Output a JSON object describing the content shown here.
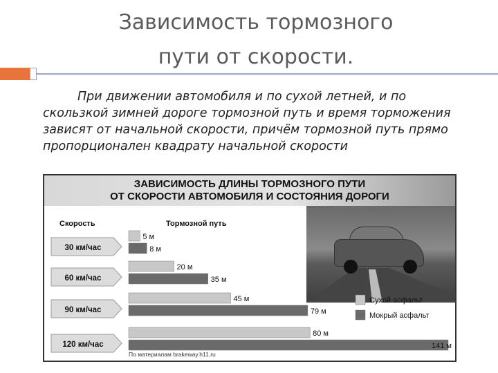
{
  "slide": {
    "title_line1": "Зависимость тормозного",
    "title_line2": "пути от скорости.",
    "body": "При движении автомобиля и по сухой летней, и по скользкой зимней дороге тормозной путь и время торможения зависят от начальной скорости, причём тормозной путь прямо пропорционален квадрату начальной скорости",
    "accent_color": "#e8743b",
    "rule_color": "#9aa7c6"
  },
  "chart_data": {
    "type": "bar",
    "title_line1": "ЗАВИСИМОСТЬ ДЛИНЫ ТОРМОЗНОГО ПУТИ",
    "title_line2": "ОТ СКОРОСТИ АВТОМОБИЛЯ И СОСТОЯНИЯ ДОРОГИ",
    "category_header": "Скорость",
    "value_header": "Тормозной путь",
    "categories": [
      "30 км/час",
      "60 км/час",
      "90 км/час",
      "120 км/час"
    ],
    "series": [
      {
        "name": "Сухой асфальт",
        "values": [
          5,
          20,
          45,
          80
        ],
        "labels": [
          "5 м",
          "20 м",
          "45 м",
          "80 м"
        ],
        "color": "#c8c8c8"
      },
      {
        "name": "Мокрый асфальт",
        "values": [
          8,
          35,
          79,
          141
        ],
        "labels": [
          "8 м",
          "35 м",
          "79 м",
          "141 м"
        ],
        "color": "#6a6a6a"
      }
    ],
    "xlim": [
      0,
      141
    ],
    "legend_position": "right",
    "source": "По материалам brakeway.h11.ru"
  }
}
